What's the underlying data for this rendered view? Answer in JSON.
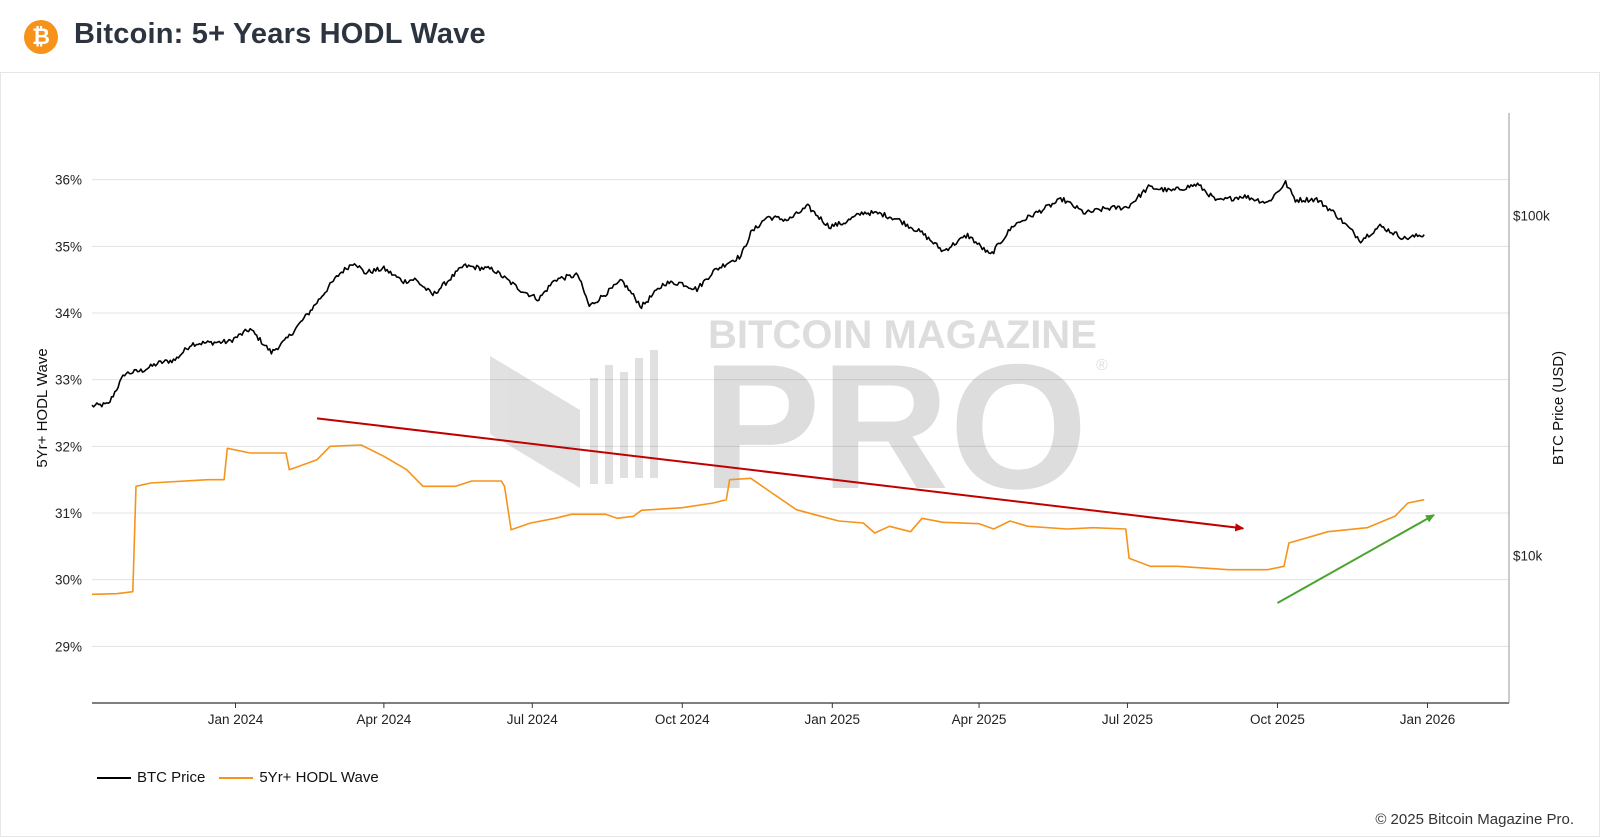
{
  "header": {
    "title": "Bitcoin: 5+ Years HODL Wave",
    "logo_glyph": "₿",
    "logo_icon": "bitcoin-icon",
    "logo_color": "#f7931a"
  },
  "watermark": {
    "line1": "BITCOIN MAGAZINE",
    "line2": "PRO",
    "mark": "®"
  },
  "footer": {
    "copyright": "© 2025 Bitcoin Magazine Pro."
  },
  "chart_data": {
    "type": "line",
    "xlabel": "",
    "x_tick_labels": [
      "Jan 2024",
      "Apr 2024",
      "Jul 2024",
      "Oct 2024",
      "Jan 2025",
      "Apr 2025",
      "Jul 2025",
      "Oct 2025",
      "Jan 2026"
    ],
    "x_tick_dates": [
      "2024-01-01",
      "2024-04-01",
      "2024-07-01",
      "2024-10-01",
      "2025-01-01",
      "2025-04-01",
      "2025-07-01",
      "2025-10-01",
      "2026-01-01"
    ],
    "xlim": [
      "2023-10-05",
      "2026-02-20"
    ],
    "y_left": {
      "label": "5Yr+ HODL Wave",
      "tick_labels": [
        "29%",
        "30%",
        "31%",
        "32%",
        "33%",
        "34%",
        "35%",
        "36%"
      ],
      "ticks": [
        29,
        30,
        31,
        32,
        33,
        34,
        35,
        36
      ],
      "range": [
        28.15,
        37.0
      ],
      "unit": "%"
    },
    "y_right": {
      "label": "BTC Price (USD)",
      "scale": "log",
      "tick_labels": [
        "$10k",
        "$100k"
      ],
      "ticks": [
        10000,
        100000
      ],
      "range": [
        3680,
        200000
      ]
    },
    "grid": true,
    "legend_position": "bottom-left",
    "series": [
      {
        "name": "BTC Price",
        "axis": "right",
        "color": "#000000",
        "points": [
          [
            "2023-10-05",
            27500
          ],
          [
            "2023-10-15",
            27800
          ],
          [
            "2023-10-25",
            34200
          ],
          [
            "2023-11-05",
            35000
          ],
          [
            "2023-11-15",
            36800
          ],
          [
            "2023-11-25",
            37600
          ],
          [
            "2023-12-05",
            41900
          ],
          [
            "2023-12-15",
            42200
          ],
          [
            "2023-12-28",
            42500
          ],
          [
            "2024-01-10",
            46300
          ],
          [
            "2024-01-23",
            39500
          ],
          [
            "2024-02-01",
            43000
          ],
          [
            "2024-02-15",
            51700
          ],
          [
            "2024-02-28",
            62300
          ],
          [
            "2024-03-05",
            67500
          ],
          [
            "2024-03-14",
            73000
          ],
          [
            "2024-03-20",
            67800
          ],
          [
            "2024-04-01",
            69700
          ],
          [
            "2024-04-13",
            63900
          ],
          [
            "2024-04-20",
            64900
          ],
          [
            "2024-05-01",
            58300
          ],
          [
            "2024-05-20",
            71000
          ],
          [
            "2024-06-07",
            69300
          ],
          [
            "2024-06-24",
            60300
          ],
          [
            "2024-07-05",
            56700
          ],
          [
            "2024-07-15",
            64800
          ],
          [
            "2024-07-29",
            66800
          ],
          [
            "2024-08-05",
            54000
          ],
          [
            "2024-08-25",
            64200
          ],
          [
            "2024-09-06",
            53900
          ],
          [
            "2024-09-20",
            63200
          ],
          [
            "2024-09-30",
            63300
          ],
          [
            "2024-10-10",
            60600
          ],
          [
            "2024-10-20",
            68400
          ],
          [
            "2024-10-29",
            72700
          ],
          [
            "2024-11-06",
            75900
          ],
          [
            "2024-11-12",
            88700
          ],
          [
            "2024-11-22",
            98900
          ],
          [
            "2024-12-05",
            97000
          ],
          [
            "2024-12-17",
            106100
          ],
          [
            "2024-12-30",
            92800
          ],
          [
            "2025-01-08",
            95000
          ],
          [
            "2025-01-20",
            102000
          ],
          [
            "2025-01-31",
            101000
          ],
          [
            "2025-02-10",
            97400
          ],
          [
            "2025-02-25",
            88700
          ],
          [
            "2025-03-10",
            78500
          ],
          [
            "2025-03-25",
            87500
          ],
          [
            "2025-04-08",
            76300
          ],
          [
            "2025-04-22",
            93400
          ],
          [
            "2025-05-10",
            104000
          ],
          [
            "2025-05-22",
            111600
          ],
          [
            "2025-06-05",
            101500
          ],
          [
            "2025-06-18",
            104800
          ],
          [
            "2025-07-01",
            105700
          ],
          [
            "2025-07-14",
            121000
          ],
          [
            "2025-07-28",
            118000
          ],
          [
            "2025-08-13",
            123300
          ],
          [
            "2025-08-25",
            110000
          ],
          [
            "2025-09-10",
            114000
          ],
          [
            "2025-09-25",
            109000
          ],
          [
            "2025-10-06",
            124700
          ],
          [
            "2025-10-12",
            111000
          ],
          [
            "2025-10-25",
            111500
          ],
          [
            "2025-11-05",
            101500
          ],
          [
            "2025-11-21",
            84500
          ],
          [
            "2025-12-03",
            93000
          ],
          [
            "2025-12-18",
            85500
          ],
          [
            "2025-12-30",
            87800
          ]
        ]
      },
      {
        "name": "5Yr+ HODL Wave",
        "axis": "left",
        "color": "#f7931a",
        "points": [
          [
            "2023-10-05",
            29.78
          ],
          [
            "2023-10-20",
            29.79
          ],
          [
            "2023-10-30",
            29.82
          ],
          [
            "2023-11-01",
            31.4
          ],
          [
            "2023-11-10",
            31.45
          ],
          [
            "2023-12-15",
            31.5
          ],
          [
            "2023-12-25",
            31.5
          ],
          [
            "2023-12-27",
            31.97
          ],
          [
            "2024-01-10",
            31.9
          ],
          [
            "2024-02-01",
            31.9
          ],
          [
            "2024-02-03",
            31.65
          ],
          [
            "2024-02-20",
            31.8
          ],
          [
            "2024-02-28",
            32.0
          ],
          [
            "2024-03-18",
            32.02
          ],
          [
            "2024-04-01",
            31.85
          ],
          [
            "2024-04-15",
            31.65
          ],
          [
            "2024-04-25",
            31.4
          ],
          [
            "2024-05-15",
            31.4
          ],
          [
            "2024-05-25",
            31.48
          ],
          [
            "2024-06-12",
            31.48
          ],
          [
            "2024-06-14",
            31.4
          ],
          [
            "2024-06-18",
            30.75
          ],
          [
            "2024-06-30",
            30.85
          ],
          [
            "2024-07-15",
            30.92
          ],
          [
            "2024-07-25",
            30.98
          ],
          [
            "2024-08-15",
            30.98
          ],
          [
            "2024-08-22",
            30.92
          ],
          [
            "2024-09-01",
            30.95
          ],
          [
            "2024-09-06",
            31.04
          ],
          [
            "2024-10-01",
            31.08
          ],
          [
            "2024-10-20",
            31.15
          ],
          [
            "2024-10-28",
            31.2
          ],
          [
            "2024-10-30",
            31.5
          ],
          [
            "2024-11-12",
            31.52
          ],
          [
            "2024-11-25",
            31.3
          ],
          [
            "2024-12-10",
            31.05
          ],
          [
            "2024-12-25",
            30.95
          ],
          [
            "2025-01-05",
            30.88
          ],
          [
            "2025-01-20",
            30.85
          ],
          [
            "2025-01-27",
            30.7
          ],
          [
            "2025-02-05",
            30.8
          ],
          [
            "2025-02-18",
            30.72
          ],
          [
            "2025-02-25",
            30.92
          ],
          [
            "2025-03-10",
            30.86
          ],
          [
            "2025-04-01",
            30.84
          ],
          [
            "2025-04-10",
            30.76
          ],
          [
            "2025-04-20",
            30.88
          ],
          [
            "2025-05-01",
            30.8
          ],
          [
            "2025-05-25",
            30.76
          ],
          [
            "2025-06-10",
            30.78
          ],
          [
            "2025-06-30",
            30.76
          ],
          [
            "2025-07-02",
            30.32
          ],
          [
            "2025-07-15",
            30.2
          ],
          [
            "2025-08-01",
            30.2
          ],
          [
            "2025-09-01",
            30.15
          ],
          [
            "2025-09-25",
            30.15
          ],
          [
            "2025-10-05",
            30.2
          ],
          [
            "2025-10-08",
            30.55
          ],
          [
            "2025-11-01",
            30.72
          ],
          [
            "2025-11-25",
            30.78
          ],
          [
            "2025-12-12",
            30.95
          ],
          [
            "2025-12-20",
            31.15
          ],
          [
            "2025-12-30",
            31.2
          ]
        ]
      }
    ],
    "annotations": [
      {
        "type": "arrow",
        "color": "#c00000",
        "axis": "left",
        "from": [
          "2024-02-20",
          32.42
        ],
        "to": [
          "2025-09-10",
          30.77
        ]
      },
      {
        "type": "arrow",
        "color": "#4aa52e",
        "axis": "left",
        "from": [
          "2025-10-01",
          29.65
        ],
        "to": [
          "2026-01-05",
          30.97
        ]
      }
    ]
  }
}
